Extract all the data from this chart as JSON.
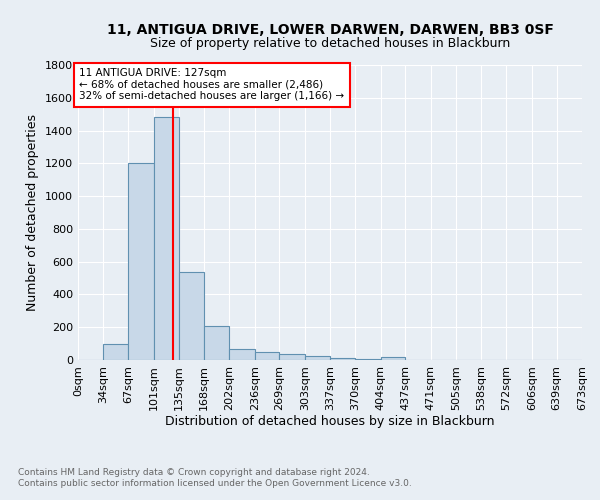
{
  "title1": "11, ANTIGUA DRIVE, LOWER DARWEN, DARWEN, BB3 0SF",
  "title2": "Size of property relative to detached houses in Blackburn",
  "xlabel": "Distribution of detached houses by size in Blackburn",
  "ylabel": "Number of detached properties",
  "footnote": "Contains HM Land Registry data © Crown copyright and database right 2024.\nContains public sector information licensed under the Open Government Licence v3.0.",
  "bin_edges": [
    0,
    34,
    67,
    101,
    135,
    168,
    202,
    236,
    269,
    303,
    337,
    370,
    404,
    437,
    471,
    505,
    538,
    572,
    606,
    639,
    673
  ],
  "bin_labels": [
    "0sqm",
    "34sqm",
    "67sqm",
    "101sqm",
    "135sqm",
    "168sqm",
    "202sqm",
    "236sqm",
    "269sqm",
    "303sqm",
    "337sqm",
    "370sqm",
    "404sqm",
    "437sqm",
    "471sqm",
    "505sqm",
    "538sqm",
    "572sqm",
    "606sqm",
    "639sqm",
    "673sqm"
  ],
  "counts": [
    0,
    95,
    1200,
    1480,
    540,
    205,
    70,
    48,
    38,
    27,
    15,
    8,
    18,
    0,
    0,
    0,
    0,
    0,
    0,
    0
  ],
  "bar_color": "#c8d8e8",
  "bar_edge_color": "#6090b0",
  "vline_x": 127,
  "vline_color": "red",
  "annotation_text": "11 ANTIGUA DRIVE: 127sqm\n← 68% of detached houses are smaller (2,486)\n32% of semi-detached houses are larger (1,166) →",
  "annotation_box_color": "white",
  "annotation_box_edge_color": "red",
  "ylim": [
    0,
    1800
  ],
  "yticks": [
    0,
    200,
    400,
    600,
    800,
    1000,
    1200,
    1400,
    1600,
    1800
  ],
  "background_color": "#e8eef4",
  "title1_fontsize": 10,
  "title2_fontsize": 9,
  "ylabel_fontsize": 9,
  "xlabel_fontsize": 9,
  "tick_fontsize": 8,
  "footnote_fontsize": 6.5,
  "footnote_color": "#666666"
}
